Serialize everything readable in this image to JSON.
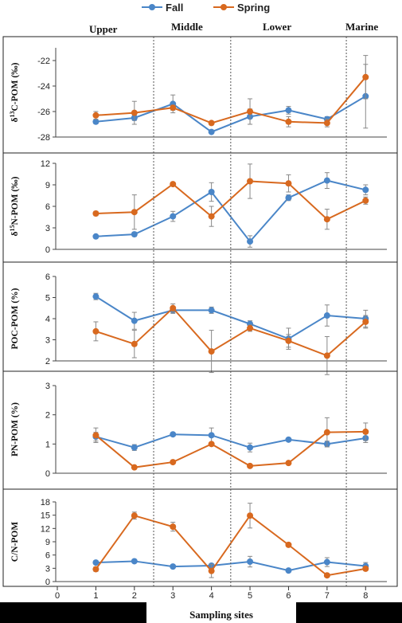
{
  "chart_data": {
    "type": "line",
    "legend": {
      "position": "top-center",
      "entries": [
        "Fall",
        "Spring"
      ]
    },
    "regions": [
      "Upper",
      "Middle",
      "Lower",
      "Marine"
    ],
    "region_boundaries": [
      2.5,
      4.5,
      7.5
    ],
    "xlabel": "Sampling sites",
    "x_ticks": [
      0,
      1,
      2,
      3,
      4,
      5,
      6,
      7,
      8
    ],
    "xlim": [
      0,
      8.8
    ],
    "x": [
      1,
      2,
      3,
      4,
      5,
      6,
      7,
      8
    ],
    "colors": {
      "Fall": "#4a86c8",
      "Spring": "#d8691f"
    },
    "panels": [
      {
        "ylabel": "δ13C-POM (‰)",
        "ylabel_parts": [
          "δ",
          "13",
          "C-POM (‰)"
        ],
        "ylim": [
          -28,
          -21
        ],
        "y_ticks": [
          -28,
          -26,
          -24,
          -22
        ],
        "series": [
          {
            "name": "Fall",
            "values": [
              -26.8,
              -26.5,
              -25.4,
              -27.6,
              -26.4,
              -25.9,
              -26.6,
              -24.8
            ],
            "err": [
              0.15,
              0.2,
              0.7,
              0.1,
              0.6,
              0.3,
              0.2,
              2.5
            ]
          },
          {
            "name": "Spring",
            "values": [
              -26.3,
              -26.1,
              -25.7,
              -26.9,
              -26.0,
              -26.8,
              -26.9,
              -23.3
            ],
            "err": [
              0.3,
              0.9,
              0.2,
              0.1,
              1.0,
              0.4,
              0.3,
              1.7
            ]
          }
        ]
      },
      {
        "ylabel": "δ15N-POM (‰)",
        "ylabel_parts": [
          "δ",
          "15",
          "N-POM (‰)"
        ],
        "ylim": [
          0,
          12
        ],
        "y_ticks": [
          0,
          3,
          6,
          9,
          12
        ],
        "series": [
          {
            "name": "Fall",
            "values": [
              1.8,
              2.1,
              4.6,
              8.0,
              1.1,
              7.2,
              9.6,
              8.3
            ],
            "err": [
              0.2,
              0.3,
              0.7,
              1.3,
              0.8,
              0.4,
              1.1,
              0.7
            ]
          },
          {
            "name": "Spring",
            "values": [
              5.0,
              5.2,
              9.1,
              4.6,
              9.5,
              9.2,
              4.2,
              6.8
            ],
            "err": [
              0.3,
              2.4,
              0.2,
              1.4,
              2.4,
              1.2,
              1.4,
              0.5
            ]
          }
        ]
      },
      {
        "ylabel": "POC-POM (%)",
        "ylim": [
          2,
          6
        ],
        "y_ticks": [
          2,
          3,
          4,
          5,
          6
        ],
        "series": [
          {
            "name": "Fall",
            "values": [
              5.05,
              3.9,
              4.4,
              4.4,
              3.75,
              3.05,
              4.15,
              4.0
            ],
            "err": [
              0.15,
              0.4,
              0.15,
              0.15,
              0.15,
              0.5,
              0.5,
              0.4
            ]
          },
          {
            "name": "Spring",
            "values": [
              3.4,
              2.8,
              4.5,
              2.45,
              3.55,
              2.95,
              2.25,
              3.85
            ],
            "err": [
              0.45,
              0.65,
              0.2,
              1.0,
              0.15,
              0.3,
              0.9,
              0.3
            ]
          }
        ]
      },
      {
        "ylabel": "PN-POM (%)",
        "ylim": [
          0,
          3
        ],
        "y_ticks": [
          0,
          1,
          2,
          3
        ],
        "series": [
          {
            "name": "Fall",
            "values": [
              1.25,
              0.88,
              1.33,
              1.3,
              0.88,
              1.15,
              1.0,
              1.2
            ],
            "err": [
              0.15,
              0.1,
              0.05,
              0.25,
              0.15,
              0.05,
              0.1,
              0.15
            ]
          },
          {
            "name": "Spring",
            "values": [
              1.3,
              0.2,
              0.38,
              1.0,
              0.25,
              0.35,
              1.4,
              1.42
            ],
            "err": [
              0.25,
              0.05,
              0.05,
              0.05,
              0.05,
              0.05,
              0.5,
              0.3
            ]
          }
        ]
      },
      {
        "ylabel": "C/N-POM",
        "ylim": [
          0,
          18
        ],
        "y_ticks": [
          0,
          3,
          6,
          9,
          12,
          15,
          18
        ],
        "series": [
          {
            "name": "Fall",
            "values": [
              4.3,
              4.6,
              3.4,
              3.6,
              4.5,
              2.5,
              4.4,
              3.5
            ],
            "err": [
              0.4,
              0.3,
              0.3,
              0.4,
              1.2,
              0.3,
              1.0,
              0.8
            ]
          },
          {
            "name": "Spring",
            "values": [
              2.8,
              14.9,
              12.4,
              2.4,
              14.9,
              8.3,
              1.4,
              2.9
            ],
            "err": [
              0.5,
              0.8,
              1.0,
              1.5,
              2.8,
              0.4,
              0.4,
              0.4
            ]
          }
        ]
      }
    ]
  }
}
